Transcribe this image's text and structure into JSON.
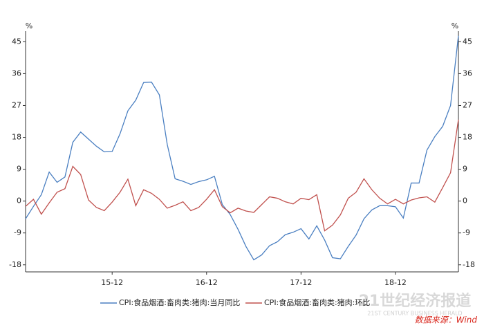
{
  "chart_data": {
    "type": "line",
    "y_unit": "%",
    "y2_unit": "%",
    "categories": [
      null,
      null,
      null,
      null,
      null,
      null,
      null,
      null,
      null,
      null,
      null,
      "15-12",
      null,
      null,
      null,
      null,
      null,
      null,
      null,
      null,
      null,
      null,
      null,
      "16-12",
      null,
      null,
      null,
      null,
      null,
      null,
      null,
      null,
      null,
      null,
      null,
      "17-12",
      null,
      null,
      null,
      null,
      null,
      null,
      null,
      null,
      null,
      null,
      null,
      "18-12",
      null,
      null,
      null,
      null,
      null,
      null,
      null,
      null
    ],
    "series": [
      {
        "name": "CPI:食品烟酒:畜肉类:猪肉:当月同比",
        "color": "#4a7fc1",
        "values": [
          -5,
          -1.5,
          1.8,
          8.2,
          5.3,
          6.8,
          16.6,
          19.5,
          17.5,
          15.5,
          13.9,
          14,
          19,
          25.5,
          28.5,
          33.5,
          33.6,
          30,
          16,
          6.3,
          5.6,
          4.7,
          5.5,
          6,
          7,
          -1,
          -3.8,
          -8,
          -12.8,
          -16.6,
          -15.2,
          -12.6,
          -11.5,
          -9.5,
          -8.8,
          -7.8,
          -10.7,
          -7,
          -11,
          -16,
          -16.3,
          -12.8,
          -9.6,
          -5,
          -2.5,
          -1.3,
          -1.3,
          -1.6,
          -4.8,
          5.1,
          5.1,
          14.4,
          18.2,
          21.1,
          27,
          46.7
        ]
      },
      {
        "name": "CPI:食品烟酒:畜肉类:猪肉:环比",
        "color": "#c0504d",
        "axis": "y2",
        "values": [
          -1.5,
          0.5,
          -3.7,
          -0.5,
          2.5,
          3.5,
          9.8,
          7.5,
          0.3,
          -1.8,
          -2.7,
          -0.3,
          2.5,
          6.2,
          -1.3,
          3.2,
          2.2,
          0.5,
          -2,
          -1.2,
          -0.2,
          -2.7,
          -1.8,
          0.5,
          3.2,
          -1.6,
          -3.3,
          -2,
          -2.8,
          -3.2,
          -1,
          1.2,
          0.8,
          -0.2,
          -0.8,
          0.8,
          0.4,
          1.8,
          -8.4,
          -6.8,
          -3.9,
          0.8,
          2.5,
          6.3,
          3.2,
          0.8,
          -0.8,
          0.5,
          -0.8,
          0.3,
          0.9,
          1.2,
          -0.3,
          3.8,
          8,
          23
        ]
      }
    ],
    "ylim": [
      -20,
      48
    ],
    "yticks": [
      -18,
      -9,
      0,
      9,
      18,
      27,
      36,
      45
    ],
    "y2lim": [
      -20,
      48
    ],
    "y2ticks": [
      -18,
      -9,
      0,
      9,
      18,
      27,
      36,
      45
    ],
    "grid": false,
    "legend": "bottom",
    "watermark": "21世纪经济报道",
    "watermark_sub": "21ST CENTURY BUSINESS HERALD",
    "source": "数据来源：Wind"
  }
}
